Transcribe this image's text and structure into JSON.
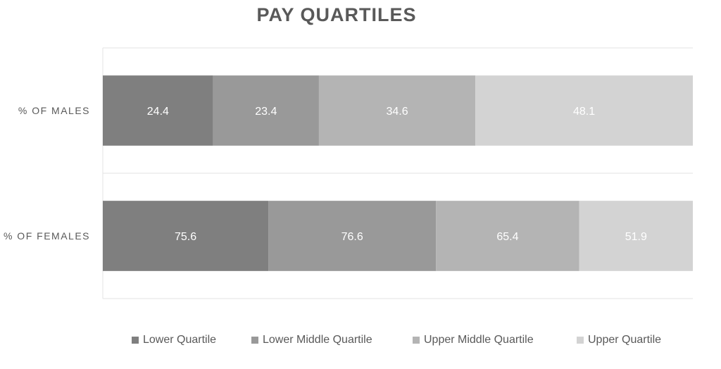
{
  "chart_data": {
    "type": "bar",
    "orientation": "horizontal",
    "stacked": "100%",
    "title": "PAY QUARTILES",
    "categories": [
      "% OF MALES",
      "% OF FEMALES"
    ],
    "series": [
      {
        "name": "Lower Quartile",
        "values": [
          24.4,
          75.6
        ],
        "color": "#7f7f7f"
      },
      {
        "name": "Lower Middle Quartile",
        "values": [
          23.4,
          76.6
        ],
        "color": "#999999"
      },
      {
        "name": "Upper Middle Quartile",
        "values": [
          34.6,
          65.4
        ],
        "color": "#b4b4b4"
      },
      {
        "name": "Upper Quartile",
        "values": [
          48.1,
          51.9
        ],
        "color": "#d3d3d3"
      }
    ],
    "grid": true,
    "legend_position": "bottom"
  }
}
